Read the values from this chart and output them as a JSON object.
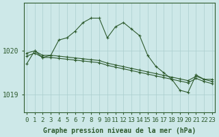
{
  "title": "Graphe pression niveau de la mer (hPa)",
  "bg_color": "#cde8e8",
  "line_color": "#2d5a2d",
  "grid_color": "#aacece",
  "yticks": [
    1019,
    1020
  ],
  "ylim": [
    1018.6,
    1021.1
  ],
  "xlim": [
    -0.3,
    23.3
  ],
  "series": [
    {
      "x": [
        0,
        1,
        2,
        3,
        4,
        5,
        6,
        7,
        8,
        9,
        10,
        11,
        12,
        13,
        14,
        15,
        16,
        17,
        18,
        19,
        20,
        21,
        22,
        23
      ],
      "y": [
        1019.7,
        1020.0,
        1019.85,
        1019.9,
        1020.25,
        1020.3,
        1020.45,
        1020.65,
        1020.75,
        1020.75,
        1020.3,
        1020.55,
        1020.65,
        1020.5,
        1020.35,
        1019.9,
        1019.65,
        1019.5,
        1019.35,
        1019.1,
        1019.05,
        1019.45,
        1019.35,
        1019.35
      ],
      "marker": "+"
    },
    {
      "x": [
        0,
        1,
        2,
        3,
        4,
        5,
        6,
        7,
        8,
        9,
        10,
        11,
        12,
        13,
        14,
        15,
        16,
        17,
        18,
        19,
        20,
        21,
        22,
        23
      ],
      "y": [
        1019.95,
        1020.0,
        1019.9,
        1019.9,
        1019.88,
        1019.86,
        1019.84,
        1019.82,
        1019.8,
        1019.78,
        1019.72,
        1019.68,
        1019.64,
        1019.6,
        1019.56,
        1019.52,
        1019.48,
        1019.44,
        1019.4,
        1019.36,
        1019.32,
        1019.42,
        1019.35,
        1019.3
      ],
      "marker": "+"
    },
    {
      "x": [
        0,
        1,
        2,
        3,
        4,
        5,
        6,
        7,
        8,
        9,
        10,
        11,
        12,
        13,
        14,
        15,
        16,
        17,
        18,
        19,
        20,
        21,
        22,
        23
      ],
      "y": [
        1019.88,
        1019.95,
        1019.85,
        1019.85,
        1019.83,
        1019.81,
        1019.79,
        1019.77,
        1019.75,
        1019.73,
        1019.67,
        1019.63,
        1019.59,
        1019.55,
        1019.51,
        1019.47,
        1019.43,
        1019.39,
        1019.35,
        1019.31,
        1019.27,
        1019.37,
        1019.3,
        1019.25
      ],
      "marker": "+"
    }
  ],
  "xlabel_fontsize": 6.5,
  "ylabel_fontsize": 7,
  "title_fontsize": 7
}
